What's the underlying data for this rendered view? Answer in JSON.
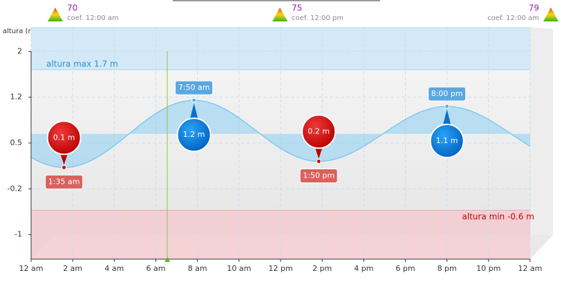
{
  "chart_data": {
    "type": "line",
    "ylabel": "altura (m)",
    "xlim": [
      0,
      24
    ],
    "xticks": [
      {
        "value": 0,
        "label": "12 am"
      },
      {
        "value": 2,
        "label": "2 am"
      },
      {
        "value": 4,
        "label": "4 am"
      },
      {
        "value": 6,
        "label": "6 am"
      },
      {
        "value": 8,
        "label": "8 am"
      },
      {
        "value": 10,
        "label": "10 am"
      },
      {
        "value": 12,
        "label": "12 pm"
      },
      {
        "value": 14,
        "label": "2 pm"
      },
      {
        "value": 16,
        "label": "4 pm"
      },
      {
        "value": 18,
        "label": "6 pm"
      },
      {
        "value": 20,
        "label": "8 pm"
      },
      {
        "value": 22,
        "label": "10 pm"
      },
      {
        "value": 24,
        "label": "12 am"
      }
    ],
    "ylim": [
      -1.4,
      2.4
    ],
    "yticks": [
      2,
      {
        "value": 1.25,
        "label": "1.2"
      },
      0.5,
      {
        "value": -0.25,
        "label": "-0.2"
      },
      -1
    ],
    "grid": true,
    "series": [
      {
        "color": "#7ecbf0",
        "x": [
          1.583,
          7.833,
          13.833,
          20
        ],
        "values": [
          0.1,
          1.2,
          0.2,
          1.1
        ],
        "value_labels": [
          "0.1 m",
          "1.2 m",
          "0.2 m",
          "1.1 m"
        ],
        "x_labels": [
          "1:35 am",
          "7:50 am",
          "1:50 pm",
          "8:00 pm"
        ],
        "kind": [
          "low",
          "high",
          "low",
          "high"
        ]
      }
    ],
    "max_level": {
      "value": 1.7,
      "label": "altura max 1.7 m"
    },
    "min_level": {
      "value": -0.6,
      "label": "altura min -0.6 m"
    },
    "current_time": 6.55,
    "coefficients": [
      {
        "value": 70,
        "label": "coef. 12:00 am"
      },
      {
        "value": 75,
        "label": "coef. 12:00 pm"
      },
      {
        "value": 79,
        "label": "coef. 12:00 am"
      }
    ]
  }
}
